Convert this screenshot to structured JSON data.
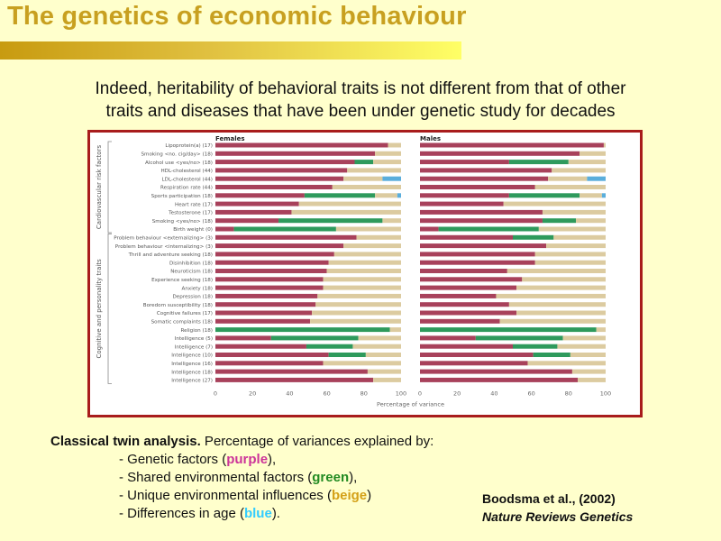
{
  "slide": {
    "title": "The genetics of economic behaviour",
    "subtitle_line1": "Indeed, heritability of behavioral traits is not different from that of other",
    "subtitle_line2": "traits and diseases that have been under genetic study for decades"
  },
  "caption": {
    "bold": "Classical twin analysis.",
    "rest": " Percentage of variances explained by:",
    "items": [
      {
        "prefix": "- Genetic factors (",
        "keyword": "purple",
        "suffix": "),",
        "color": "#cc3399"
      },
      {
        "prefix": "- Shared environmental factors (",
        "keyword": "green",
        "suffix": "),",
        "color": "#228b22"
      },
      {
        "prefix": "- Unique environmental influences (",
        "keyword": "beige",
        "suffix": ")",
        "color": "#d4a017"
      },
      {
        "prefix": "- Differences in age (",
        "keyword": "blue",
        "suffix": ").",
        "color": "#33ccff"
      }
    ]
  },
  "citation": {
    "authors": "Boodsma et al., (2002)",
    "journal": "Nature Reviews Genetics"
  },
  "chart_data": {
    "type": "bar",
    "stacked": true,
    "orientation": "horizontal",
    "xlabel": "Percentage of variance",
    "xlim": [
      0,
      100
    ],
    "xticks": [
      "0",
      "20",
      "40",
      "60",
      "80",
      "100"
    ],
    "group_labels": [
      "Cardiovascular risk factors",
      "Cognitive and personality traits"
    ],
    "component_colors": {
      "genetic": "#a8415b",
      "shared": "#2e9a5c",
      "unique": "#dccba0",
      "age": "#5aaedc"
    },
    "categories": [
      {
        "label": "Lipoprotein(a) (17)",
        "group": 0
      },
      {
        "label": "Smoking <no. cig/day> (18)",
        "group": 0
      },
      {
        "label": "Alcohol use <yes/no> (18)",
        "group": 0
      },
      {
        "label": "HDL-cholesterol (44)",
        "group": 0
      },
      {
        "label": "LDL-cholesterol (44)",
        "group": 0
      },
      {
        "label": "Respiration rate (44)",
        "group": 0
      },
      {
        "label": "Sports participation (18)",
        "group": 0
      },
      {
        "label": "Heart rate (17)",
        "group": 0
      },
      {
        "label": "Testosterone (17)",
        "group": 0
      },
      {
        "label": "Smoking <yes/no> (18)",
        "group": 0
      },
      {
        "label": "Birth weight (0)",
        "group": 0
      },
      {
        "label": "Problem behaviour <externalizing> (3)",
        "group": 1
      },
      {
        "label": "Problem behaviour <internalizing> (3)",
        "group": 1
      },
      {
        "label": "Thrill and adventure seeking (18)",
        "group": 1
      },
      {
        "label": "Disinhibition (18)",
        "group": 1
      },
      {
        "label": "Neuroticism (18)",
        "group": 1
      },
      {
        "label": "Experience seeking (18)",
        "group": 1
      },
      {
        "label": "Anxiety (18)",
        "group": 1
      },
      {
        "label": "Depression (18)",
        "group": 1
      },
      {
        "label": "Boredom susceptibility (18)",
        "group": 1
      },
      {
        "label": "Cognitive failures (17)",
        "group": 1
      },
      {
        "label": "Somatic complaints (18)",
        "group": 1
      },
      {
        "label": "Religion (18)",
        "group": 1
      },
      {
        "label": "Intelligence (5)",
        "group": 1
      },
      {
        "label": "Intelligence (7)",
        "group": 1
      },
      {
        "label": "Intelligence (10)",
        "group": 1
      },
      {
        "label": "Intelligence (16)",
        "group": 1
      },
      {
        "label": "Intelligence (18)",
        "group": 1
      },
      {
        "label": "Intelligence (27)",
        "group": 1
      }
    ],
    "panels": [
      {
        "title": "Females",
        "series": [
          {
            "name": "Genetic factors",
            "key": "genetic",
            "values": [
              93,
              86,
              75,
              71,
              69,
              63,
              48,
              45,
              41,
              34,
              10,
              76,
              69,
              64,
              61,
              60,
              58,
              58,
              55,
              54,
              52,
              51,
              0,
              30,
              49,
              61,
              58,
              82,
              85
            ]
          },
          {
            "name": "Shared environment",
            "key": "shared",
            "values": [
              0,
              0,
              10,
              0,
              0,
              0,
              38,
              0,
              0,
              56,
              55,
              0,
              0,
              0,
              0,
              0,
              0,
              0,
              0,
              0,
              0,
              0,
              94,
              47,
              25,
              20,
              0,
              0,
              0
            ]
          },
          {
            "name": "Unique environment",
            "key": "unique",
            "values": [
              7,
              14,
              15,
              29,
              21,
              37,
              12,
              55,
              59,
              10,
              35,
              24,
              31,
              36,
              39,
              40,
              42,
              42,
              45,
              46,
              48,
              49,
              6,
              23,
              26,
              19,
              42,
              18,
              15
            ]
          },
          {
            "name": "Age differences",
            "key": "age",
            "values": [
              0,
              0,
              0,
              0,
              10,
              0,
              2,
              0,
              0,
              0,
              0,
              0,
              0,
              0,
              0,
              0,
              0,
              0,
              0,
              0,
              0,
              0,
              0,
              0,
              0,
              0,
              0,
              0,
              0
            ]
          }
        ]
      },
      {
        "title": "Males",
        "series": [
          {
            "name": "Genetic factors",
            "key": "genetic",
            "values": [
              99,
              86,
              48,
              71,
              69,
              62,
              48,
              45,
              66,
              66,
              10,
              50,
              68,
              62,
              62,
              47,
              55,
              52,
              41,
              48,
              52,
              43,
              0,
              30,
              50,
              61,
              58,
              82,
              85
            ]
          },
          {
            "name": "Shared environment",
            "key": "shared",
            "values": [
              0,
              0,
              32,
              0,
              0,
              0,
              38,
              0,
              0,
              18,
              54,
              22,
              0,
              0,
              0,
              0,
              0,
              0,
              0,
              0,
              0,
              0,
              95,
              47,
              24,
              20,
              0,
              0,
              0
            ]
          },
          {
            "name": "Unique environment",
            "key": "unique",
            "values": [
              1,
              14,
              20,
              29,
              21,
              38,
              12,
              55,
              34,
              16,
              36,
              28,
              32,
              38,
              38,
              53,
              45,
              48,
              59,
              52,
              48,
              57,
              5,
              23,
              26,
              19,
              42,
              18,
              15
            ]
          },
          {
            "name": "Age differences",
            "key": "age",
            "values": [
              0,
              0,
              0,
              0,
              10,
              0,
              2,
              0,
              0,
              0,
              0,
              0,
              0,
              0,
              0,
              0,
              0,
              0,
              0,
              0,
              0,
              0,
              0,
              0,
              0,
              0,
              0,
              0,
              0
            ]
          }
        ]
      }
    ]
  }
}
